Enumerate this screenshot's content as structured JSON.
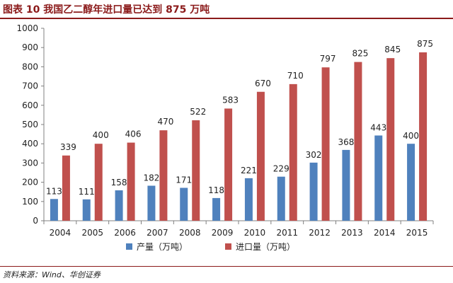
{
  "header": {
    "title": "图表 10   我国乙二醇年进口量已达到 875 万吨"
  },
  "footer": {
    "source": "资料来源：Wind、华创证券"
  },
  "chart_data": {
    "type": "bar",
    "categories": [
      "2004",
      "2005",
      "2006",
      "2007",
      "2008",
      "2009",
      "2010",
      "2011",
      "2012",
      "2013",
      "2014",
      "2015"
    ],
    "series": [
      {
        "name": "产量（万吨）",
        "values": [
          113,
          111,
          158,
          182,
          171,
          118,
          221,
          229,
          302,
          368,
          443,
          400
        ],
        "color": "#4f81bd"
      },
      {
        "name": "进口量（万吨）",
        "values": [
          339,
          400,
          406,
          470,
          522,
          583,
          670,
          710,
          797,
          825,
          845,
          875
        ],
        "color": "#c0504d"
      }
    ],
    "ylim": [
      0,
      1000
    ],
    "yticks": [
      0,
      100,
      200,
      300,
      400,
      500,
      600,
      700,
      800,
      900,
      1000
    ],
    "grid": false,
    "legend_position": "bottom",
    "data_labels": true
  }
}
